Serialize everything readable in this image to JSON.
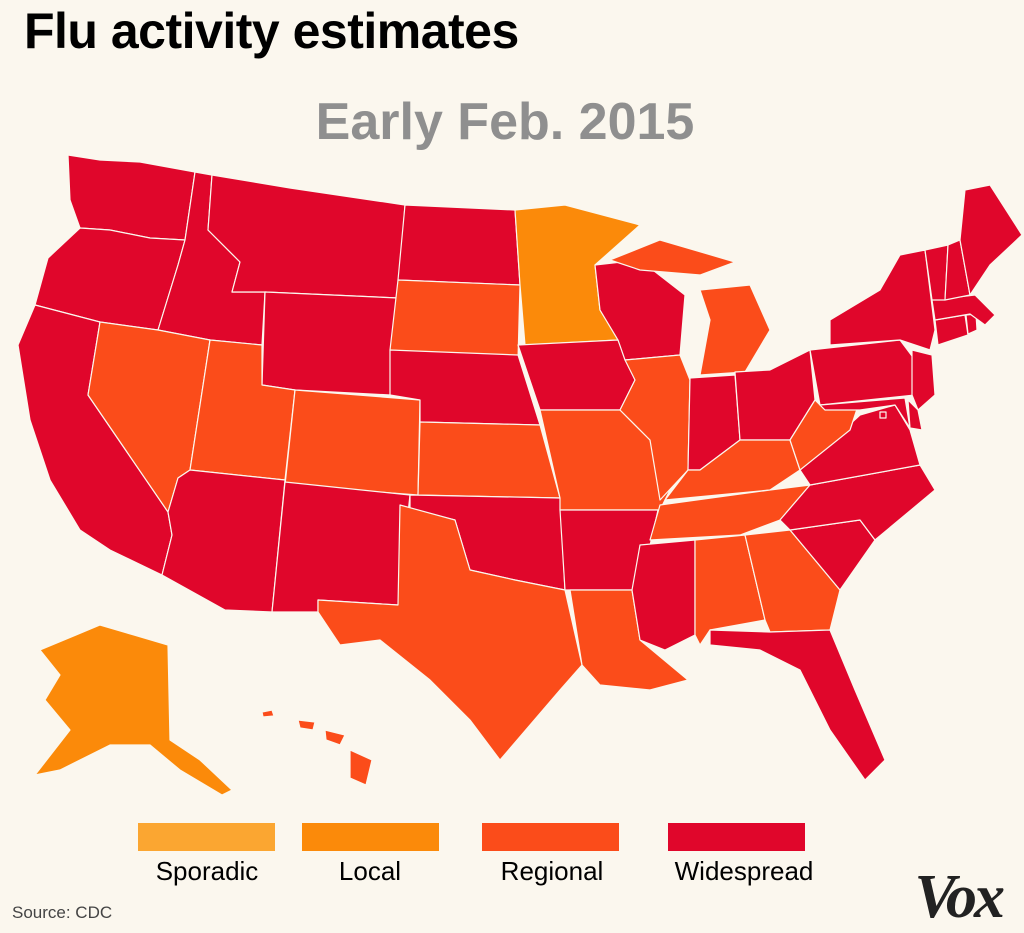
{
  "title": "Flu activity estimates",
  "subtitle": "Early Feb. 2015",
  "source": "Source: CDC",
  "logo": "Vox",
  "colors": {
    "Sporadic": "#fba631",
    "Local": "#fb8a0a",
    "Regional": "#fb4c1a",
    "Widespread": "#e0062b"
  },
  "legend": [
    {
      "key": "Sporadic",
      "label": "Sporadic"
    },
    {
      "key": "Local",
      "label": "Local"
    },
    {
      "key": "Regional",
      "label": "Regional"
    },
    {
      "key": "Widespread",
      "label": "Widespread"
    }
  ],
  "states": {
    "WA": "Widespread",
    "OR": "Widespread",
    "CA": "Widespread",
    "ID": "Widespread",
    "NV": "Regional",
    "MT": "Widespread",
    "WY": "Widespread",
    "UT": "Regional",
    "AZ": "Widespread",
    "CO": "Regional",
    "NM": "Widespread",
    "ND": "Widespread",
    "SD": "Regional",
    "NE": "Widespread",
    "KS": "Regional",
    "OK": "Widespread",
    "TX": "Regional",
    "MN": "Local",
    "IA": "Widespread",
    "MO": "Regional",
    "AR": "Widespread",
    "LA": "Regional",
    "WI": "Widespread",
    "IL": "Regional",
    "MI": "Regional",
    "IN": "Widespread",
    "OH": "Widespread",
    "KY": "Regional",
    "TN": "Regional",
    "MS": "Widespread",
    "AL": "Regional",
    "GA": "Regional",
    "FL": "Widespread",
    "SC": "Widespread",
    "NC": "Widespread",
    "VA": "Widespread",
    "WV": "Regional",
    "PA": "Widespread",
    "NY": "Widespread",
    "VT": "Widespread",
    "NH": "Widespread",
    "ME": "Widespread",
    "MA": "Widespread",
    "RI": "Widespread",
    "CT": "Widespread",
    "NJ": "Widespread",
    "DE": "Widespread",
    "MD": "Widespread",
    "DC": "Widespread",
    "AK": "Local",
    "HI": "Regional"
  }
}
